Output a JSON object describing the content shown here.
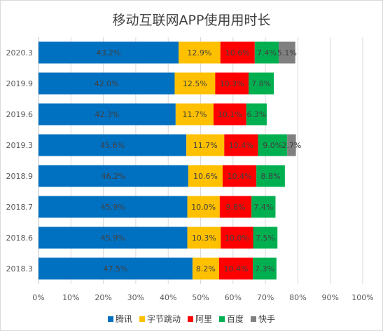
{
  "chart_data": {
    "type": "bar",
    "orientation": "horizontal",
    "stacked": true,
    "title": "移动互联网APP使用用时长",
    "categories": [
      "2020.3",
      "2019.9",
      "2019.6",
      "2019.3",
      "2018.9",
      "2018.7",
      "2018.6",
      "2018.3"
    ],
    "series": [
      {
        "name": "腾讯",
        "color": "#0070c0",
        "values": [
          43.2,
          42.0,
          42.3,
          45.6,
          46.2,
          45.9,
          45.9,
          47.5
        ]
      },
      {
        "name": "字节跳动",
        "color": "#ffc000",
        "values": [
          12.9,
          12.5,
          11.7,
          11.7,
          10.6,
          10.0,
          10.3,
          8.2
        ]
      },
      {
        "name": "阿里",
        "color": "#ff0000",
        "values": [
          10.6,
          10.3,
          10.1,
          10.4,
          10.4,
          9.8,
          10.0,
          10.4
        ]
      },
      {
        "name": "百度",
        "color": "#00b050",
        "values": [
          7.4,
          7.8,
          6.3,
          9.0,
          8.8,
          7.4,
          7.5,
          7.3
        ]
      },
      {
        "name": "快手",
        "color": "#808080",
        "values": [
          5.1,
          null,
          null,
          2.7,
          null,
          null,
          null,
          null
        ]
      }
    ],
    "data_labels": [
      [
        "43.2%",
        "12.9%",
        "10.6%",
        "7.4%",
        "5.1%"
      ],
      [
        "42.0%",
        "12.5%",
        "10.3%",
        "7.8%",
        ""
      ],
      [
        "42.3%",
        "11.7%",
        "10.1%",
        "6.3%",
        ""
      ],
      [
        "45.6%",
        "11.7%",
        "10.4%",
        "9.0%",
        "2.7%"
      ],
      [
        "46.2%",
        "10.6%",
        "10.4%",
        "8.8%",
        ""
      ],
      [
        "45.9%",
        "10.0%",
        "9.8%",
        "7.4%",
        ""
      ],
      [
        "45.9%",
        "10.3%",
        "10.0%",
        "7.5%",
        ""
      ],
      [
        "47.5%",
        "8.2%",
        "10.4%",
        "7.3%",
        ""
      ]
    ],
    "x_ticks": [
      "0%",
      "10%",
      "20%",
      "30%",
      "40%",
      "50%",
      "60%",
      "70%",
      "80%",
      "90%",
      "100%"
    ],
    "xlim": [
      0,
      100
    ],
    "grid": true,
    "legend_position": "bottom"
  }
}
